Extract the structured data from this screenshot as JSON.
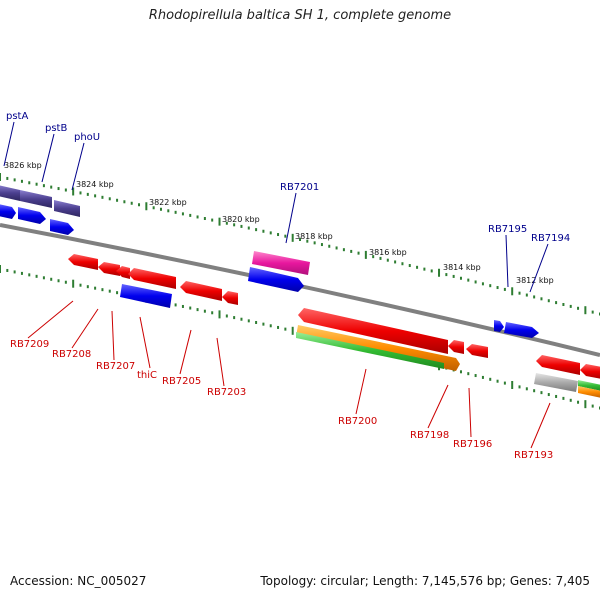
{
  "header": {
    "title": "Rhodopirellula baltica SH 1, complete genome"
  },
  "footer": {
    "accession": "Accession: NC_005027",
    "summary": "Topology: circular; Length: 7,145,576 bp; Genes: 7,405"
  },
  "scale_labels": [
    "3826 kbp",
    "3824 kbp",
    "3822 kbp",
    "3820 kbp",
    "3818 kbp",
    "3816 kbp",
    "3814 kbp",
    "3812 kbp"
  ],
  "gene_labels": {
    "forward": [
      "pstA",
      "pstB",
      "phoU",
      "RB7201",
      "RB7195",
      "RB7194"
    ],
    "reverse": [
      "RB7209",
      "RB7208",
      "RB7207",
      "thiC",
      "RB7205",
      "RB7203",
      "RB7200",
      "RB7198",
      "RB7196",
      "RB7193"
    ]
  },
  "colors": {
    "forward_label": "#00008b",
    "reverse_label": "#cc0000",
    "backbone": "#808080",
    "tick": "#2e7d32",
    "gene_red": "#ee0000",
    "gene_blue": "#0000ee",
    "gene_slate": "#4b3f8f",
    "gene_magenta": "#e8179e",
    "gene_orange": "#ff8c00",
    "gene_green": "#33bb33",
    "gene_gray": "#aaaaaa"
  }
}
